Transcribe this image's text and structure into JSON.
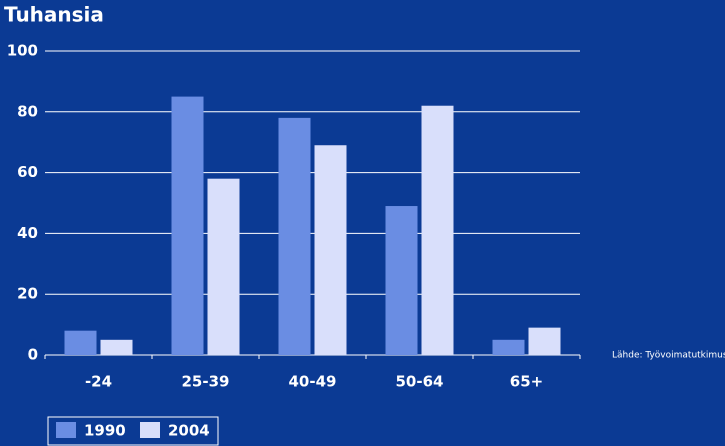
{
  "chart_data": {
    "type": "bar",
    "title": "Tuhansia",
    "categories": [
      "-24",
      "25-39",
      "40-49",
      "50-64",
      "65+"
    ],
    "series": [
      {
        "name": "1990",
        "color": "#6a8de3",
        "values": [
          8,
          85,
          78,
          49,
          5
        ]
      },
      {
        "name": "2004",
        "color": "#d9dffb",
        "values": [
          5,
          58,
          69,
          82,
          9
        ]
      }
    ],
    "ylim": [
      0,
      100
    ],
    "yticks": [
      0,
      20,
      40,
      60,
      80,
      100
    ],
    "grid": true,
    "legend": "bottom-left",
    "annotation": "Lähde: Työvoimatutkimus"
  }
}
